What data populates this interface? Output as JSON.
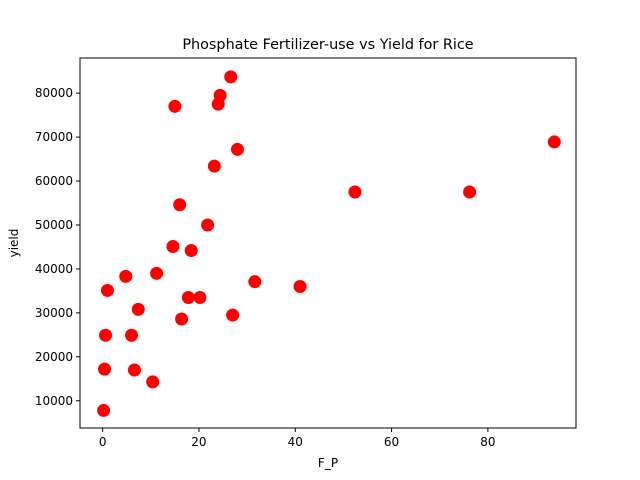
{
  "chart_data": {
    "type": "scatter",
    "title": "Phosphate Fertilizer-use vs Yield for Rice",
    "xlabel": "F_P",
    "ylabel": "yield",
    "xlim": [
      -4.7,
      98.3
    ],
    "ylim": [
      3800,
      88000
    ],
    "x_ticks": [
      0,
      20,
      40,
      60,
      80
    ],
    "y_ticks": [
      10000,
      20000,
      30000,
      40000,
      50000,
      60000,
      70000,
      80000
    ],
    "grid": false,
    "marker_color": "#ff0000",
    "series": [
      {
        "points": [
          [
            0.2,
            7800
          ],
          [
            0.4,
            17200
          ],
          [
            0.6,
            24900
          ],
          [
            1.0,
            35100
          ],
          [
            4.8,
            38300
          ],
          [
            6.0,
            24900
          ],
          [
            6.6,
            17000
          ],
          [
            7.4,
            30800
          ],
          [
            10.4,
            14300
          ],
          [
            11.2,
            39000
          ],
          [
            14.6,
            45100
          ],
          [
            15.0,
            77000
          ],
          [
            16.0,
            54600
          ],
          [
            16.4,
            28600
          ],
          [
            17.8,
            33500
          ],
          [
            18.4,
            44200
          ],
          [
            20.2,
            33500
          ],
          [
            21.8,
            50000
          ],
          [
            23.2,
            63400
          ],
          [
            24.0,
            77500
          ],
          [
            24.4,
            79500
          ],
          [
            26.6,
            83700
          ],
          [
            27.0,
            29500
          ],
          [
            28.0,
            67200
          ],
          [
            31.6,
            37100
          ],
          [
            41.0,
            36000
          ],
          [
            52.4,
            57500
          ],
          [
            76.2,
            57500
          ],
          [
            93.8,
            68900
          ]
        ]
      }
    ]
  }
}
